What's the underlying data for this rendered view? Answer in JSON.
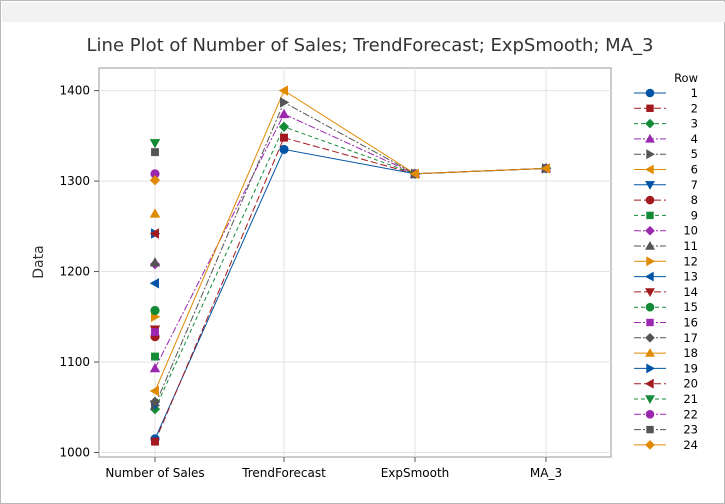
{
  "chart_data": {
    "type": "line",
    "title": "Line Plot of Number of Sales; TrendForecast; ExpSmooth; MA_3",
    "xlabel": "",
    "ylabel": "Data",
    "categories": [
      "Number of Sales",
      "TrendForecast",
      "ExpSmooth",
      "MA_3"
    ],
    "ylim": [
      995,
      1425
    ],
    "yticks": [
      1000,
      1100,
      1200,
      1300,
      1400
    ],
    "grid": true,
    "legend_title": "Row",
    "legend_position": "right",
    "series": [
      {
        "name": "1",
        "color": "#0054A6",
        "marker": "circle",
        "dash": "solid",
        "values": [
          1015,
          1335,
          1308,
          1314
        ]
      },
      {
        "name": "2",
        "color": "#A2191F",
        "marker": "square",
        "dash": "longdash",
        "values": [
          1012,
          1348,
          1308,
          1314
        ]
      },
      {
        "name": "3",
        "color": "#138A36",
        "marker": "diamond",
        "dash": "dash",
        "values": [
          1048,
          1360,
          1308,
          1314
        ]
      },
      {
        "name": "4",
        "color": "#9B27B0",
        "marker": "triangle-up",
        "dash": "dashdot",
        "values": [
          1093,
          1374,
          1308,
          1314
        ]
      },
      {
        "name": "5",
        "color": "#555555",
        "marker": "triangle-right",
        "dash": "dashdot",
        "values": [
          1052,
          1387,
          1308,
          1314
        ]
      },
      {
        "name": "6",
        "color": "#E08A00",
        "marker": "triangle-left",
        "dash": "solid",
        "values": [
          1068,
          1400,
          1308,
          1314
        ]
      },
      {
        "name": "7",
        "color": "#0054A6",
        "marker": "triangle-down",
        "dash": "solid",
        "values": [
          1053,
          null,
          null,
          null
        ]
      },
      {
        "name": "8",
        "color": "#A2191F",
        "marker": "circle",
        "dash": "longdash",
        "values": [
          1128,
          null,
          null,
          null
        ]
      },
      {
        "name": "9",
        "color": "#138A36",
        "marker": "square",
        "dash": "dash",
        "values": [
          1106,
          null,
          null,
          null
        ]
      },
      {
        "name": "10",
        "color": "#9B27B0",
        "marker": "diamond",
        "dash": "dashdot",
        "values": [
          1208,
          null,
          null,
          null
        ]
      },
      {
        "name": "11",
        "color": "#555555",
        "marker": "triangle-up",
        "dash": "dashdot",
        "values": [
          1210,
          null,
          null,
          null
        ]
      },
      {
        "name": "12",
        "color": "#E08A00",
        "marker": "triangle-right",
        "dash": "solid",
        "values": [
          1150,
          null,
          null,
          null
        ]
      },
      {
        "name": "13",
        "color": "#0054A6",
        "marker": "triangle-left",
        "dash": "solid",
        "values": [
          1187,
          null,
          null,
          null
        ]
      },
      {
        "name": "14",
        "color": "#A2191F",
        "marker": "triangle-down",
        "dash": "longdash",
        "values": [
          1136,
          null,
          null,
          null
        ]
      },
      {
        "name": "15",
        "color": "#138A36",
        "marker": "circle",
        "dash": "dash",
        "values": [
          1157,
          null,
          null,
          null
        ]
      },
      {
        "name": "16",
        "color": "#9B27B0",
        "marker": "square",
        "dash": "dashdot",
        "values": [
          1133,
          null,
          null,
          null
        ]
      },
      {
        "name": "17",
        "color": "#555555",
        "marker": "diamond",
        "dash": "dashdot",
        "values": [
          1056,
          null,
          null,
          null
        ]
      },
      {
        "name": "18",
        "color": "#E08A00",
        "marker": "triangle-up",
        "dash": "solid",
        "values": [
          1264,
          null,
          null,
          null
        ]
      },
      {
        "name": "19",
        "color": "#0054A6",
        "marker": "triangle-right",
        "dash": "solid",
        "values": [
          1242,
          null,
          null,
          null
        ]
      },
      {
        "name": "20",
        "color": "#A2191F",
        "marker": "triangle-left",
        "dash": "longdash",
        "values": [
          1242,
          null,
          null,
          null
        ]
      },
      {
        "name": "21",
        "color": "#138A36",
        "marker": "triangle-down",
        "dash": "dash",
        "values": [
          1342,
          null,
          null,
          null
        ]
      },
      {
        "name": "22",
        "color": "#9B27B0",
        "marker": "circle",
        "dash": "dashdot",
        "values": [
          1308,
          null,
          null,
          null
        ]
      },
      {
        "name": "23",
        "color": "#555555",
        "marker": "square",
        "dash": "dashdot",
        "values": [
          1332,
          null,
          null,
          null
        ]
      },
      {
        "name": "24",
        "color": "#E08A00",
        "marker": "diamond",
        "dash": "solid",
        "values": [
          1301,
          null,
          null,
          null
        ]
      }
    ]
  }
}
